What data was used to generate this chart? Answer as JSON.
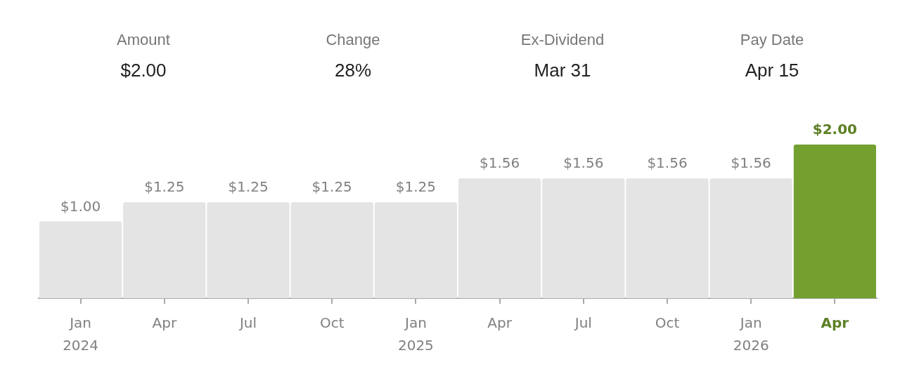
{
  "chart_data": {
    "type": "bar",
    "annotations": [
      "Amount",
      "$2.00",
      "Change",
      "28%",
      "Ex-Dividend",
      "Mar 31",
      "Pay Date",
      "Apr 15"
    ],
    "categories": [
      "Jan 2024",
      "Apr",
      "Jul",
      "Oct",
      "Jan 2025",
      "Apr",
      "Jul",
      "Oct",
      "Jan 2026",
      "Apr"
    ],
    "values": [
      1.0,
      1.25,
      1.25,
      1.25,
      1.25,
      1.56,
      1.56,
      1.56,
      1.56,
      2.0
    ],
    "colors": [
      "#e4e4e4",
      "#e4e4e4",
      "#e4e4e4",
      "#e4e4e4",
      "#e4e4e4",
      "#e4e4e4",
      "#e4e4e4",
      "#e4e4e4",
      "#e4e4e4",
      "#74a030"
    ],
    "value_labels": [
      "$1.00",
      "$1.25",
      "$1.25",
      "$1.25",
      "$1.25",
      "$1.56",
      "$1.56",
      "$1.56",
      "$1.56",
      "$2.00"
    ],
    "tick_labels": "x"
  }
}
